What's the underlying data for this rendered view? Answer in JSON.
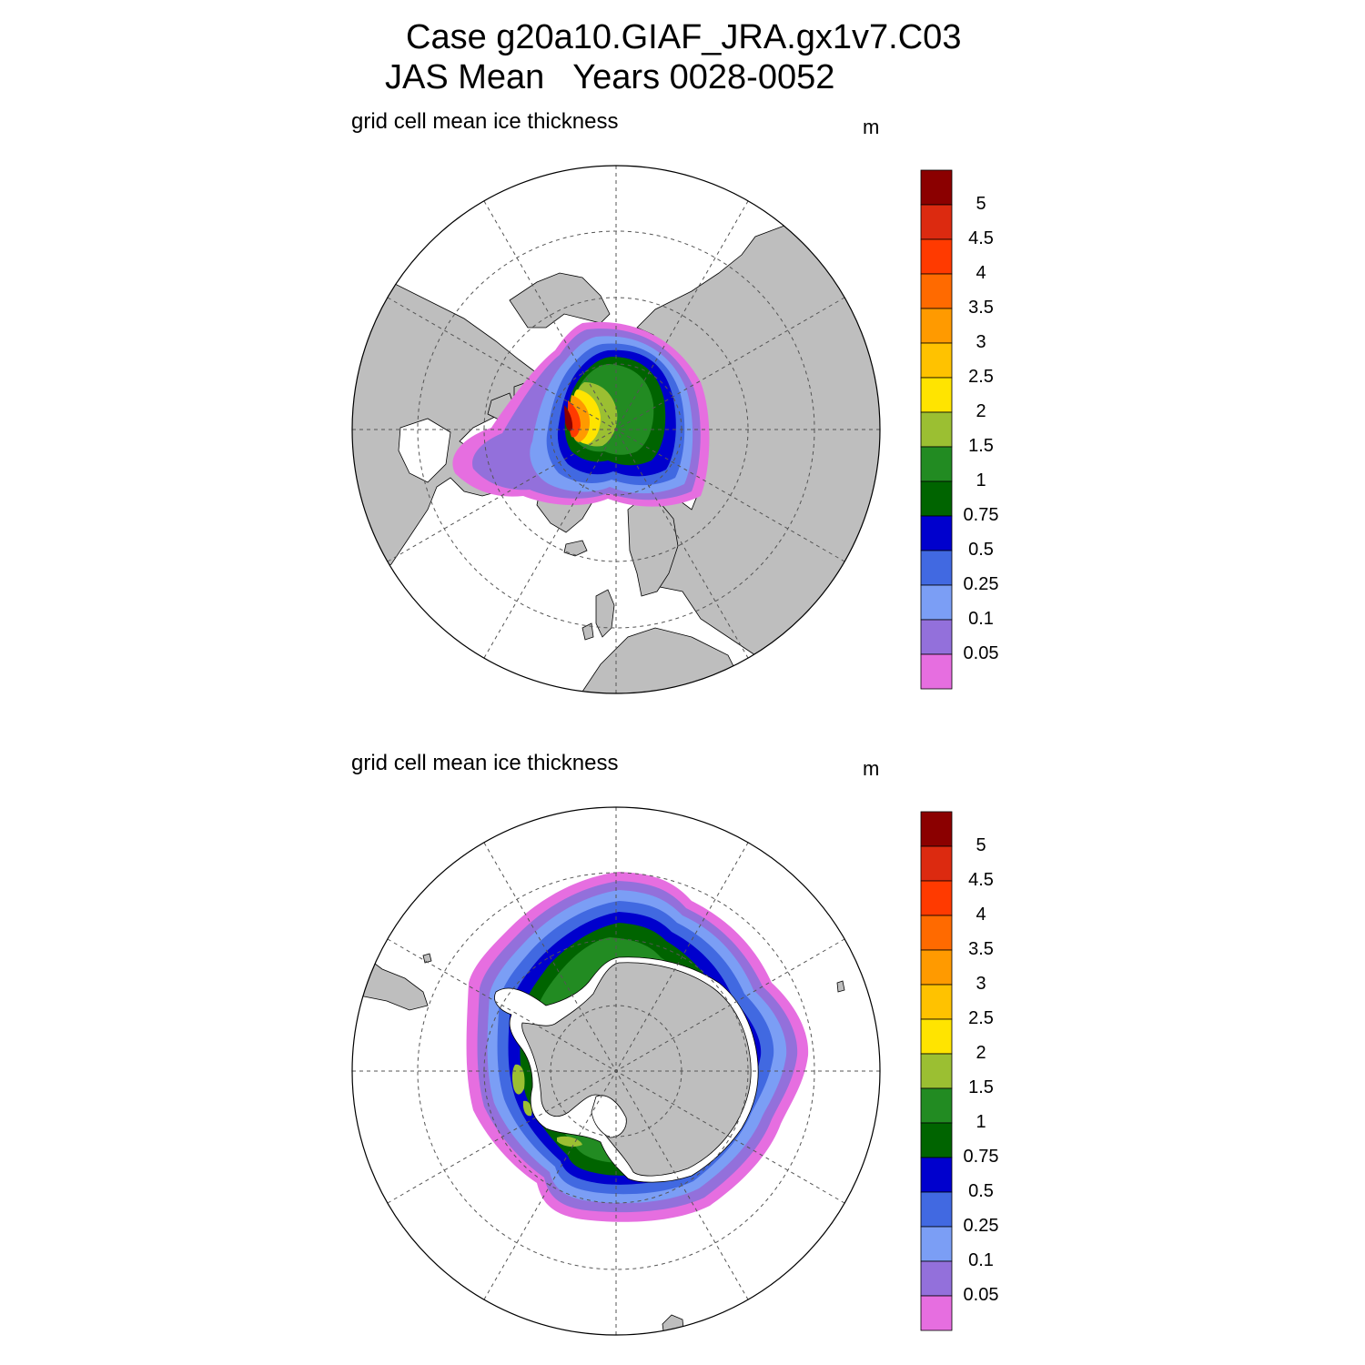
{
  "title": {
    "line1": "Case g20a10.GIAF_JRA.gx1v7.C03",
    "line2": "JAS Mean   Years 0028-0052"
  },
  "panels": [
    {
      "name": "north",
      "variable": "grid cell mean ice thickness",
      "units": "m"
    },
    {
      "name": "south",
      "variable": "grid cell mean ice thickness",
      "units": "m"
    }
  ],
  "colorbar": {
    "labels": [
      "5",
      "4.5",
      "4",
      "3.5",
      "3",
      "2.5",
      "2",
      "1.5",
      "1",
      "0.75",
      "0.5",
      "0.25",
      "0.1",
      "0.05"
    ],
    "colors": [
      "#8b0000",
      "#dc2a10",
      "#ff3a00",
      "#ff6a00",
      "#ff9a00",
      "#ffc200",
      "#ffe400",
      "#9bbf32",
      "#228b22",
      "#006400",
      "#0000cd",
      "#4169e1",
      "#7b9ef5",
      "#9370db",
      "#e66ee0"
    ]
  },
  "map_colors": {
    "land": "#bebebe",
    "ocean": "#ffffff",
    "grid": "#555555"
  },
  "chart_data": [
    {
      "type": "map",
      "projection": "polar stereographic",
      "hemisphere": "north",
      "title": "grid cell mean ice thickness",
      "units": "m",
      "levels": [
        0.05,
        0.1,
        0.25,
        0.5,
        0.75,
        1,
        1.5,
        2,
        2.5,
        3,
        3.5,
        4,
        4.5,
        5
      ]
    },
    {
      "type": "map",
      "projection": "polar stereographic",
      "hemisphere": "south",
      "title": "grid cell mean ice thickness",
      "units": "m",
      "levels": [
        0.05,
        0.1,
        0.25,
        0.5,
        0.75,
        1,
        1.5,
        2,
        2.5,
        3,
        3.5,
        4,
        4.5,
        5
      ]
    }
  ]
}
